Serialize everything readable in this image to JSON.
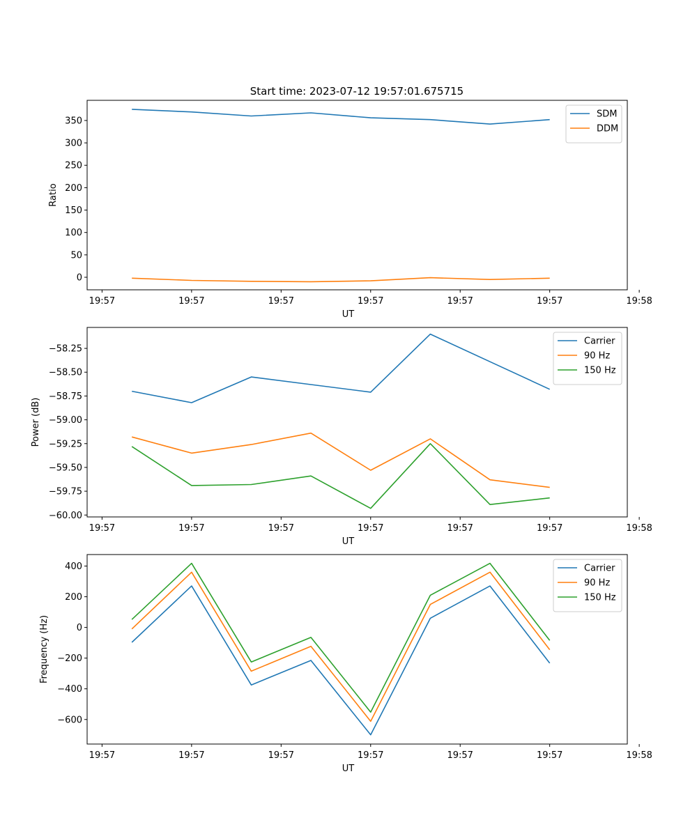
{
  "figure": {
    "title": "Start time: 2023-07-12 19:57:01.675715"
  },
  "chart_data": [
    {
      "type": "line",
      "name": "ratio",
      "title": "Start time: 2023-07-12 19:57:01.675715",
      "xlabel": "UT",
      "ylabel": "Ratio",
      "xlim": [
        -0.25,
        8.8
      ],
      "ylim": [
        -28,
        395
      ],
      "xticks": [
        0,
        1.5,
        3,
        4.5,
        6,
        7.5,
        9
      ],
      "xtick_labels": [
        "19:57",
        "19:57",
        "19:57",
        "19:57",
        "19:57",
        "19:57",
        "19:58"
      ],
      "yticks": [
        0,
        50,
        100,
        150,
        200,
        250,
        300,
        350
      ],
      "ytick_labels": [
        "0",
        "50",
        "100",
        "150",
        "200",
        "250",
        "300",
        "350"
      ],
      "x": [
        0.5,
        1.5,
        2.5,
        3.5,
        4.5,
        5.5,
        6.5,
        7.5
      ],
      "series": [
        {
          "name": "SDM",
          "color": "#1f77b4",
          "values": [
            375,
            369,
            360,
            367,
            356,
            352,
            342,
            352
          ]
        },
        {
          "name": "DDM",
          "color": "#ff7f0e",
          "values": [
            -2,
            -7,
            -9,
            -10,
            -8,
            -1,
            -5,
            -2
          ]
        }
      ],
      "legend": [
        "SDM",
        "DDM"
      ],
      "legend_loc": "upper-right"
    },
    {
      "type": "line",
      "name": "power",
      "title": "",
      "xlabel": "UT",
      "ylabel": "Power (dB)",
      "xlim": [
        -0.25,
        8.8
      ],
      "ylim": [
        -60.02,
        -58.03
      ],
      "xticks": [
        0,
        1.5,
        3,
        4.5,
        6,
        7.5,
        9
      ],
      "xtick_labels": [
        "19:57",
        "19:57",
        "19:57",
        "19:57",
        "19:57",
        "19:57",
        "19:58"
      ],
      "yticks": [
        -60.0,
        -59.75,
        -59.5,
        -59.25,
        -59.0,
        -58.75,
        -58.5,
        -58.25
      ],
      "ytick_labels": [
        "−60.00",
        "−59.75",
        "−59.50",
        "−59.25",
        "−59.00",
        "−58.75",
        "−58.50",
        "−58.25"
      ],
      "x": [
        0.5,
        1.5,
        2.5,
        3.5,
        4.5,
        5.5,
        6.5,
        7.5
      ],
      "series": [
        {
          "name": "Carrier",
          "color": "#1f77b4",
          "values": [
            -58.7,
            -58.82,
            -58.55,
            -58.63,
            -58.71,
            -58.1,
            -58.39,
            -58.68
          ]
        },
        {
          "name": "90 Hz",
          "color": "#ff7f0e",
          "values": [
            -59.18,
            -59.35,
            -59.26,
            -59.14,
            -59.53,
            -59.2,
            -59.63,
            -59.71
          ]
        },
        {
          "name": "150 Hz",
          "color": "#2ca02c",
          "values": [
            -59.28,
            -59.69,
            -59.68,
            -59.59,
            -59.93,
            -59.25,
            -59.89,
            -59.82
          ]
        }
      ],
      "legend": [
        "Carrier",
        "90 Hz",
        "150 Hz"
      ],
      "legend_loc": "upper-right"
    },
    {
      "type": "line",
      "name": "frequency",
      "title": "",
      "xlabel": "UT",
      "ylabel": "Frequency (Hz)",
      "xlim": [
        -0.25,
        8.8
      ],
      "ylim": [
        -760,
        475
      ],
      "xticks": [
        0,
        1.5,
        3,
        4.5,
        6,
        7.5,
        9
      ],
      "xtick_labels": [
        "19:57",
        "19:57",
        "19:57",
        "19:57",
        "19:57",
        "19:57",
        "19:58"
      ],
      "yticks": [
        -600,
        -400,
        -200,
        0,
        200,
        400
      ],
      "ytick_labels": [
        "−600",
        "−400",
        "−200",
        "0",
        "200",
        "400"
      ],
      "x": [
        0.5,
        1.5,
        2.5,
        3.5,
        4.5,
        5.5,
        6.5,
        7.5
      ],
      "series": [
        {
          "name": "Carrier",
          "color": "#1f77b4",
          "values": [
            -97,
            270,
            -375,
            -215,
            -700,
            60,
            270,
            -233
          ]
        },
        {
          "name": "90 Hz",
          "color": "#ff7f0e",
          "values": [
            -10,
            360,
            -285,
            -123,
            -612,
            150,
            360,
            -145
          ]
        },
        {
          "name": "150 Hz",
          "color": "#2ca02c",
          "values": [
            52,
            418,
            -225,
            -65,
            -552,
            210,
            418,
            -85
          ]
        }
      ],
      "legend": [
        "Carrier",
        "90 Hz",
        "150 Hz"
      ],
      "legend_loc": "upper-right"
    }
  ]
}
